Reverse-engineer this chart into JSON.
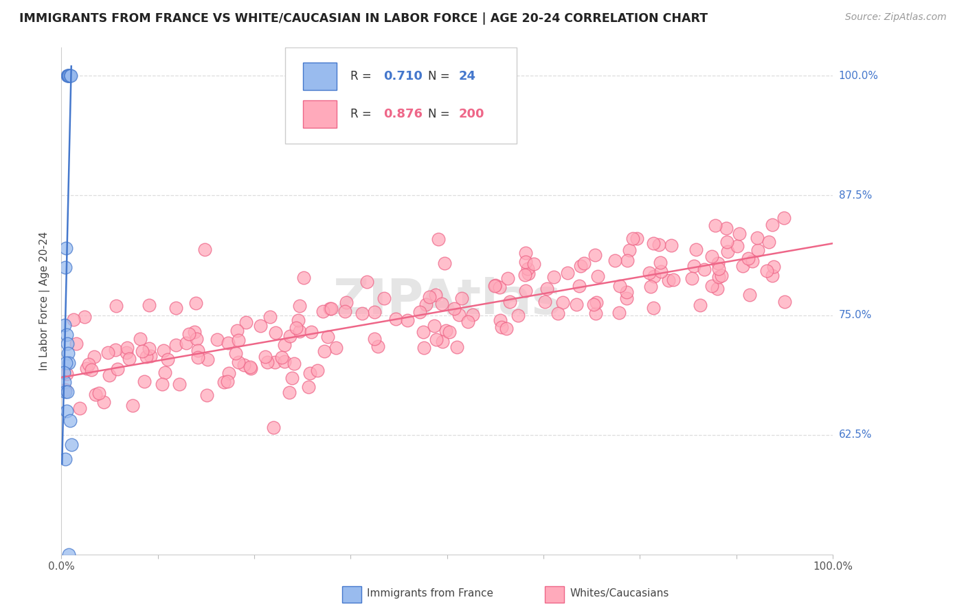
{
  "title": "IMMIGRANTS FROM FRANCE VS WHITE/CAUCASIAN IN LABOR FORCE | AGE 20-24 CORRELATION CHART",
  "source": "Source: ZipAtlas.com",
  "ylabel": "In Labor Force | Age 20-24",
  "xlim": [
    0.0,
    1.0
  ],
  "ylim": [
    0.5,
    1.03
  ],
  "ytick_labels": [
    "62.5%",
    "75.0%",
    "87.5%",
    "100.0%"
  ],
  "ytick_positions": [
    0.625,
    0.75,
    0.875,
    1.0
  ],
  "blue_R": "0.710",
  "blue_N": "24",
  "pink_R": "0.876",
  "pink_N": "200",
  "blue_fill": "#99BBEE",
  "pink_fill": "#FFAABB",
  "blue_edge": "#4477CC",
  "pink_edge": "#EE6688",
  "watermark_text": "ZIPAtlas",
  "legend_label_blue": "Immigrants from France",
  "legend_label_pink": "Whites/Caucasians",
  "blue_scatter_x": [
    0.008,
    0.009,
    0.009,
    0.01,
    0.01,
    0.011,
    0.012,
    0.006,
    0.005,
    0.004,
    0.007,
    0.008,
    0.009,
    0.01,
    0.006,
    0.003,
    0.004,
    0.005,
    0.008,
    0.007,
    0.011,
    0.013,
    0.005,
    0.01
  ],
  "blue_scatter_y": [
    1.0,
    1.0,
    1.0,
    1.0,
    1.0,
    1.0,
    1.0,
    0.82,
    0.8,
    0.74,
    0.73,
    0.72,
    0.71,
    0.7,
    0.7,
    0.69,
    0.68,
    0.67,
    0.67,
    0.65,
    0.64,
    0.615,
    0.6,
    0.5
  ],
  "blue_line_x": [
    0.001,
    0.013
  ],
  "blue_line_y": [
    0.595,
    1.01
  ],
  "pink_line_x": [
    0.0,
    1.0
  ],
  "pink_line_y": [
    0.685,
    0.825
  ],
  "pink_seed": 42,
  "grid_color": "#DDDDDD",
  "title_color": "#222222",
  "source_color": "#999999",
  "ytick_color": "#4477CC",
  "xtick_color": "#555555"
}
